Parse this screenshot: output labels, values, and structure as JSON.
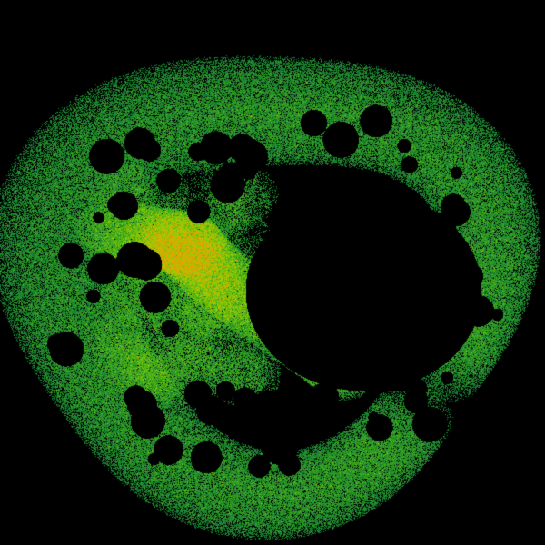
{
  "image": {
    "subject": "fractal-attractor",
    "background_color": "#000000",
    "palette": {
      "edge": "#0a1a8c",
      "outer": "#0b6e3a",
      "mid": "#3fae1a",
      "bright": "#9fd000",
      "hot": "#e8a000"
    }
  }
}
